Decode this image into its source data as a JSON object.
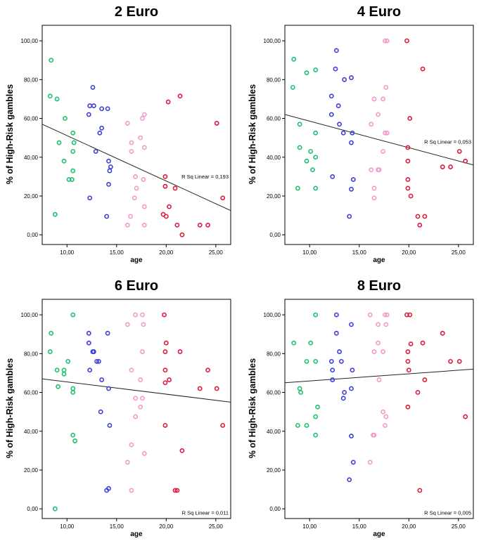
{
  "chart_data": [
    {
      "type": "scatter",
      "title": "2 Euro",
      "xlabel": "age",
      "ylabel": "% of High-Risk gambles",
      "xlim": [
        7.5,
        26.5
      ],
      "ylim": [
        -5,
        108
      ],
      "xticks": [
        "10,00",
        "15,00",
        "20,00",
        "25,00"
      ],
      "yticks": [
        "0,00",
        "20,00",
        "40,00",
        "60,00",
        "80,00",
        "100,00"
      ],
      "fit_line": {
        "x": [
          7.5,
          26.5
        ],
        "y": [
          57,
          12.5
        ]
      },
      "annotation": "R Sq Linear = 0,193",
      "series": [
        {
          "color": "#19c36e",
          "points": [
            [
              8.4,
              90
            ],
            [
              8.3,
              71.5
            ],
            [
              9.0,
              70
            ],
            [
              9.8,
              60
            ],
            [
              10.6,
              52.5
            ],
            [
              10.7,
              47.5
            ],
            [
              9.2,
              47.5
            ],
            [
              10.6,
              43
            ],
            [
              9.7,
              38
            ],
            [
              10.2,
              28.5
            ],
            [
              10.5,
              28.5
            ],
            [
              10.6,
              33
            ],
            [
              8.8,
              10.5
            ]
          ]
        },
        {
          "color": "#3d3ddb",
          "points": [
            [
              12.6,
              76
            ],
            [
              12.3,
              66.5
            ],
            [
              12.7,
              66.5
            ],
            [
              13.5,
              65
            ],
            [
              14.1,
              65
            ],
            [
              12.2,
              62
            ],
            [
              13.5,
              55
            ],
            [
              13.3,
              52.5
            ],
            [
              12.9,
              43
            ],
            [
              14.2,
              38
            ],
            [
              14.4,
              35
            ],
            [
              14.3,
              33
            ],
            [
              14.2,
              26
            ],
            [
              12.3,
              19
            ],
            [
              14.0,
              9.5
            ]
          ]
        },
        {
          "color": "#f29ac8",
          "points": [
            [
              17.8,
              62
            ],
            [
              17.6,
              60
            ],
            [
              16.1,
              57.5
            ],
            [
              17.4,
              50
            ],
            [
              16.5,
              47.5
            ],
            [
              17.8,
              45
            ],
            [
              16.5,
              43
            ],
            [
              16.9,
              30
            ],
            [
              17.7,
              28.5
            ],
            [
              17.0,
              24
            ],
            [
              16.8,
              19
            ],
            [
              17.8,
              14.5
            ],
            [
              16.4,
              9.5
            ],
            [
              16.1,
              5
            ],
            [
              17.8,
              5
            ]
          ]
        },
        {
          "color": "#e0183c",
          "points": [
            [
              21.4,
              71.5
            ],
            [
              20.2,
              68.5
            ],
            [
              25.1,
              57.5
            ],
            [
              19.9,
              30
            ],
            [
              19.9,
              25
            ],
            [
              20.9,
              24
            ],
            [
              25.7,
              19
            ],
            [
              20.3,
              14.5
            ],
            [
              19.7,
              10.5
            ],
            [
              20.0,
              9.5
            ],
            [
              21.1,
              5
            ],
            [
              23.4,
              5
            ],
            [
              24.2,
              5
            ],
            [
              21.6,
              0
            ]
          ]
        }
      ]
    },
    {
      "type": "scatter",
      "title": "4 Euro",
      "xlabel": "age",
      "ylabel": "% of High-Risk gambles",
      "xlim": [
        7.5,
        26.5
      ],
      "ylim": [
        -5,
        108
      ],
      "xticks": [
        "10,00",
        "15,00",
        "20,00",
        "25,00"
      ],
      "yticks": [
        "0,00",
        "20,00",
        "40,00",
        "60,00",
        "80,00",
        "100,00"
      ],
      "fit_line": {
        "x": [
          7.5,
          26.5
        ],
        "y": [
          62,
          36
        ]
      },
      "annotation": "R Sq Linear = 0,053",
      "series": [
        {
          "color": "#19c36e",
          "points": [
            [
              8.4,
              90.5
            ],
            [
              10.6,
              85
            ],
            [
              9.7,
              83.5
            ],
            [
              8.3,
              76
            ],
            [
              9.0,
              57
            ],
            [
              10.6,
              52.5
            ],
            [
              9.0,
              45
            ],
            [
              10.6,
              40
            ],
            [
              10.1,
              43
            ],
            [
              9.7,
              38
            ],
            [
              10.3,
              33.5
            ],
            [
              8.8,
              24
            ],
            [
              10.6,
              24
            ]
          ]
        },
        {
          "color": "#3d3ddb",
          "points": [
            [
              12.7,
              95
            ],
            [
              12.6,
              85.5
            ],
            [
              14.2,
              81
            ],
            [
              13.5,
              80
            ],
            [
              12.2,
              71.5
            ],
            [
              12.9,
              66.5
            ],
            [
              12.2,
              62
            ],
            [
              13.0,
              57
            ],
            [
              13.4,
              52.5
            ],
            [
              14.3,
              52.5
            ],
            [
              14.2,
              47.5
            ],
            [
              12.3,
              30
            ],
            [
              14.4,
              28.5
            ],
            [
              14.2,
              23.5
            ],
            [
              14.0,
              9.5
            ]
          ]
        },
        {
          "color": "#f29ac8",
          "points": [
            [
              17.6,
              100
            ],
            [
              17.8,
              100
            ],
            [
              17.7,
              76
            ],
            [
              16.5,
              70
            ],
            [
              17.4,
              70
            ],
            [
              16.9,
              62
            ],
            [
              16.2,
              57
            ],
            [
              17.6,
              52.5
            ],
            [
              17.8,
              52.5
            ],
            [
              17.4,
              43
            ],
            [
              16.9,
              33.5
            ],
            [
              17.0,
              33.5
            ],
            [
              16.2,
              33.5
            ],
            [
              16.5,
              24
            ],
            [
              16.5,
              19
            ]
          ]
        },
        {
          "color": "#e0183c",
          "points": [
            [
              19.8,
              100
            ],
            [
              21.4,
              85.5
            ],
            [
              20.1,
              60
            ],
            [
              19.9,
              45
            ],
            [
              25.1,
              43
            ],
            [
              19.9,
              38
            ],
            [
              25.7,
              38
            ],
            [
              23.4,
              35
            ],
            [
              24.2,
              35
            ],
            [
              19.9,
              28.5
            ],
            [
              19.9,
              24
            ],
            [
              20.2,
              20
            ],
            [
              20.9,
              9.5
            ],
            [
              21.6,
              9.5
            ],
            [
              21.1,
              5
            ]
          ]
        }
      ]
    },
    {
      "type": "scatter",
      "title": "6 Euro",
      "xlabel": "age",
      "ylabel": "% of High-Risk gambles",
      "xlim": [
        7.5,
        26.5
      ],
      "ylim": [
        -5,
        108
      ],
      "xticks": [
        "10,00",
        "15,00",
        "20,00",
        "25,00"
      ],
      "yticks": [
        "0,00",
        "20,00",
        "40,00",
        "60,00",
        "80,00",
        "100,00"
      ],
      "fit_line": {
        "x": [
          7.5,
          26.5
        ],
        "y": [
          67,
          55
        ]
      },
      "annotation": "R Sq Linear = 0,011",
      "series": [
        {
          "color": "#19c36e",
          "points": [
            [
              10.6,
              100
            ],
            [
              8.4,
              90.5
            ],
            [
              8.3,
              81
            ],
            [
              10.1,
              76
            ],
            [
              9.0,
              71.5
            ],
            [
              9.7,
              71.5
            ],
            [
              9.7,
              69.5
            ],
            [
              10.6,
              62
            ],
            [
              10.6,
              60
            ],
            [
              9.1,
              63
            ],
            [
              10.6,
              38
            ],
            [
              10.8,
              35
            ],
            [
              8.8,
              0
            ]
          ]
        },
        {
          "color": "#3d3ddb",
          "points": [
            [
              12.2,
              90.5
            ],
            [
              14.1,
              90.5
            ],
            [
              12.2,
              85.5
            ],
            [
              12.6,
              81
            ],
            [
              12.7,
              81
            ],
            [
              13.0,
              76
            ],
            [
              13.2,
              76
            ],
            [
              12.3,
              71.5
            ],
            [
              13.5,
              66.5
            ],
            [
              14.2,
              62
            ],
            [
              13.4,
              50
            ],
            [
              14.3,
              43
            ],
            [
              14.0,
              9.5
            ],
            [
              14.2,
              10.5
            ]
          ]
        },
        {
          "color": "#f29ac8",
          "points": [
            [
              16.9,
              100
            ],
            [
              17.6,
              100
            ],
            [
              17.7,
              95
            ],
            [
              16.1,
              95
            ],
            [
              17.6,
              81
            ],
            [
              16.5,
              71.5
            ],
            [
              17.4,
              66.5
            ],
            [
              16.9,
              57
            ],
            [
              17.6,
              57
            ],
            [
              17.4,
              52.5
            ],
            [
              16.9,
              47.5
            ],
            [
              16.5,
              33
            ],
            [
              17.8,
              28.5
            ],
            [
              16.1,
              24
            ],
            [
              16.5,
              9.5
            ]
          ]
        },
        {
          "color": "#e0183c",
          "points": [
            [
              19.8,
              100
            ],
            [
              20.0,
              85.5
            ],
            [
              19.9,
              81
            ],
            [
              21.4,
              81
            ],
            [
              19.9,
              71.5
            ],
            [
              24.2,
              71.5
            ],
            [
              20.3,
              66.5
            ],
            [
              19.9,
              65
            ],
            [
              23.4,
              62
            ],
            [
              25.1,
              62
            ],
            [
              19.9,
              43
            ],
            [
              25.7,
              43
            ],
            [
              21.6,
              30
            ],
            [
              20.9,
              9.5
            ],
            [
              21.1,
              9.5
            ]
          ]
        }
      ]
    },
    {
      "type": "scatter",
      "title": "8 Euro",
      "xlabel": "age",
      "ylabel": "% of High-Risk gambles",
      "xlim": [
        7.5,
        26.5
      ],
      "ylim": [
        -5,
        108
      ],
      "xticks": [
        "10,00",
        "15,00",
        "20,00",
        "25,00"
      ],
      "yticks": [
        "0,00",
        "20,00",
        "40,00",
        "60,00",
        "80,00",
        "100,00"
      ],
      "fit_line": {
        "x": [
          7.5,
          26.5
        ],
        "y": [
          65,
          72
        ]
      },
      "annotation": "R Sq Linear = 0,005",
      "series": [
        {
          "color": "#19c36e",
          "points": [
            [
              10.6,
              100
            ],
            [
              8.4,
              85.5
            ],
            [
              10.1,
              85.5
            ],
            [
              9.7,
              76
            ],
            [
              10.6,
              76
            ],
            [
              9.0,
              62
            ],
            [
              9.1,
              60
            ],
            [
              10.8,
              52.5
            ],
            [
              10.6,
              47.5
            ],
            [
              8.8,
              43
            ],
            [
              9.7,
              43
            ],
            [
              10.6,
              38
            ]
          ]
        },
        {
          "color": "#3d3ddb",
          "points": [
            [
              12.7,
              100
            ],
            [
              14.2,
              95
            ],
            [
              12.7,
              90.5
            ],
            [
              13.0,
              81
            ],
            [
              12.2,
              76
            ],
            [
              13.2,
              76
            ],
            [
              12.3,
              71.5
            ],
            [
              14.3,
              71.5
            ],
            [
              12.3,
              66.5
            ],
            [
              13.5,
              60
            ],
            [
              13.4,
              57
            ],
            [
              14.2,
              62
            ],
            [
              14.2,
              37.5
            ],
            [
              14.4,
              24
            ],
            [
              14.0,
              15
            ]
          ]
        },
        {
          "color": "#f29ac8",
          "points": [
            [
              16.1,
              100
            ],
            [
              17.6,
              100
            ],
            [
              17.8,
              100
            ],
            [
              16.9,
              95
            ],
            [
              17.7,
              95
            ],
            [
              16.9,
              85.5
            ],
            [
              16.5,
              81
            ],
            [
              17.4,
              81
            ],
            [
              17.0,
              66.5
            ],
            [
              17.4,
              50
            ],
            [
              17.7,
              47.5
            ],
            [
              17.6,
              43
            ],
            [
              16.4,
              38
            ],
            [
              16.5,
              38
            ],
            [
              16.1,
              24
            ]
          ]
        },
        {
          "color": "#e0183c",
          "points": [
            [
              19.8,
              100
            ],
            [
              20.1,
              100
            ],
            [
              23.4,
              90.5
            ],
            [
              20.2,
              85
            ],
            [
              21.4,
              85.5
            ],
            [
              19.9,
              81
            ],
            [
              19.9,
              76
            ],
            [
              24.2,
              76
            ],
            [
              25.1,
              76
            ],
            [
              20.0,
              71.5
            ],
            [
              21.6,
              66.5
            ],
            [
              20.9,
              60
            ],
            [
              19.9,
              52.5
            ],
            [
              25.7,
              47.5
            ],
            [
              21.1,
              9.5
            ]
          ]
        }
      ]
    }
  ]
}
